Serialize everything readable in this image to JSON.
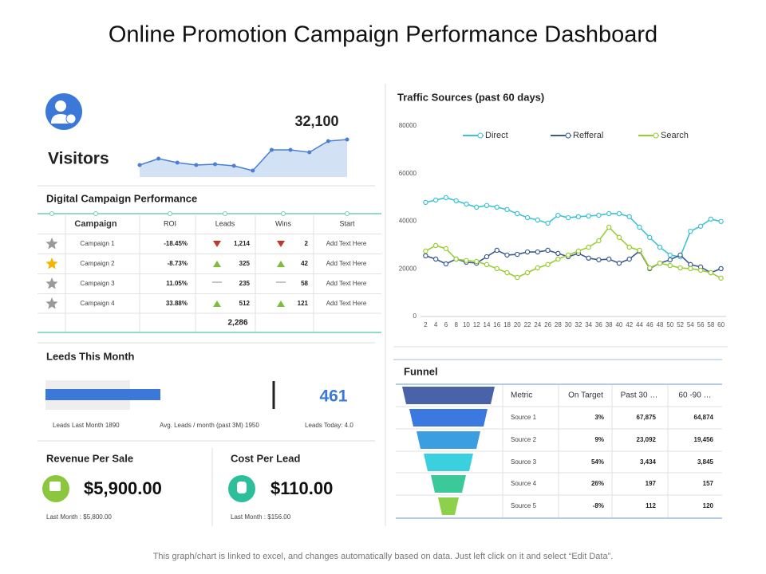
{
  "title": "Online Promotion Campaign Performance Dashboard",
  "visitors": {
    "label": "Visitors",
    "total": "32,100"
  },
  "chart_data": [
    {
      "type": "area",
      "color": "#4a7fd4",
      "values": [
        15,
        23,
        18,
        15,
        16,
        14,
        8,
        34,
        34,
        31,
        45,
        47
      ],
      "ylim": [
        0,
        50
      ]
    },
    {
      "type": "line",
      "title": "Traffic Sources (past 60 days)",
      "legend": "top",
      "x": [
        2,
        4,
        6,
        8,
        10,
        12,
        14,
        16,
        18,
        20,
        22,
        24,
        26,
        28,
        30,
        32,
        34,
        36,
        38,
        40,
        42,
        44,
        46,
        48,
        50,
        52,
        54,
        56,
        58,
        60
      ],
      "xlim": [
        1,
        61
      ],
      "ylim": [
        0,
        80000
      ],
      "xticks": [
        2,
        4,
        6,
        8,
        10,
        12,
        14,
        16,
        18,
        20,
        22,
        24,
        26,
        28,
        30,
        32,
        34,
        36,
        38,
        40,
        42,
        44,
        46,
        48,
        50,
        52,
        54,
        56,
        58,
        60
      ],
      "yticks": [
        0,
        20000,
        40000,
        60000,
        80000
      ],
      "series": [
        {
          "name": "Direct",
          "color": "#3cc3d4",
          "values": [
            47900,
            48900,
            49900,
            48600,
            47200,
            45900,
            46600,
            45900,
            44900,
            43200,
            41500,
            40500,
            39200,
            42500,
            41500,
            41900,
            42200,
            42500,
            43200,
            43200,
            41900,
            37500,
            33200,
            29100,
            25800,
            25100,
            35800,
            37900,
            40900,
            39900
          ]
        },
        {
          "name": "Refferal",
          "color": "#3b5b8f",
          "values": [
            25500,
            24100,
            22100,
            24100,
            22800,
            22400,
            25100,
            27800,
            25800,
            26100,
            27100,
            27100,
            27800,
            26500,
            25100,
            26500,
            24500,
            23800,
            24100,
            22400,
            24100,
            27500,
            20100,
            22400,
            23800,
            25800,
            21800,
            20800,
            18400,
            20100
          ]
        },
        {
          "name": "Search",
          "color": "#9acd32",
          "values": [
            27500,
            29800,
            28500,
            24100,
            23500,
            23100,
            21800,
            20100,
            18400,
            16400,
            18400,
            20400,
            21800,
            24100,
            25800,
            27500,
            29100,
            31800,
            37500,
            33200,
            29100,
            27800,
            20400,
            22400,
            21400,
            20400,
            20100,
            19400,
            18400,
            16100
          ]
        }
      ]
    }
  ],
  "campaign": {
    "title": "Digital Campaign Performance",
    "columns": [
      "Campaign",
      "ROI",
      "Leads",
      "Wins",
      "Start"
    ],
    "rows": [
      {
        "star": "#9a9a9a",
        "name": "Campaign 1",
        "roi": "-18.45%",
        "leads_trend": "down",
        "leads": "1,214",
        "wins_trend": "down",
        "wins": "2",
        "start": "Add Text Here"
      },
      {
        "star": "#f5b400",
        "name": "Campaign 2",
        "roi": "-8.73%",
        "leads_trend": "up",
        "leads": "325",
        "wins_trend": "up",
        "wins": "42",
        "start": "Add Text Here"
      },
      {
        "star": "#9a9a9a",
        "name": "Campaign 3",
        "roi": "11.05%",
        "leads_trend": "flat",
        "leads": "235",
        "wins_trend": "flat",
        "wins": "58",
        "start": "Add Text Here"
      },
      {
        "star": "#9a9a9a",
        "name": "Campaign 4",
        "roi": "33.88%",
        "leads_trend": "up",
        "leads": "512",
        "wins_trend": "up",
        "wins": "121",
        "start": "Add Text Here"
      }
    ],
    "total": "2,286"
  },
  "leads": {
    "title": "Leeds This Month",
    "today_value": "461",
    "last_month": "Leads Last Month  1890",
    "average": "Avg. Leads / month (past 3M)  1950",
    "today": "Leads Today: 4.0"
  },
  "revenue": {
    "title": "Revenue Per Sale",
    "value": "$5,900.00",
    "last": "Last Month  : $5,800.00"
  },
  "cost": {
    "title": "Cost Per Lead",
    "value": "$110.00",
    "last": "Last Month  : $156.00"
  },
  "funnel": {
    "title": "Funnel",
    "colors": [
      "#4a63a8",
      "#3b78e0",
      "#3a9ee0",
      "#3ad0e0",
      "#3cc99a",
      "#8cd04c"
    ],
    "columns": [
      "Metric",
      "On Target",
      "Past 30 …",
      "60 -90 …"
    ],
    "rows": [
      [
        "Source 1",
        "3%",
        "67,875",
        "64,874"
      ],
      [
        "Source 2",
        "9%",
        "23,092",
        "19,456"
      ],
      [
        "Source 3",
        "54%",
        "3,434",
        "3,845"
      ],
      [
        "Source 4",
        "26%",
        "197",
        "157"
      ],
      [
        "Source 5",
        "-8%",
        "112",
        "120"
      ]
    ]
  },
  "footer": "This graph/chart is linked to excel, and changes automatically based on data. Just left click on it and select “Edit Data”."
}
